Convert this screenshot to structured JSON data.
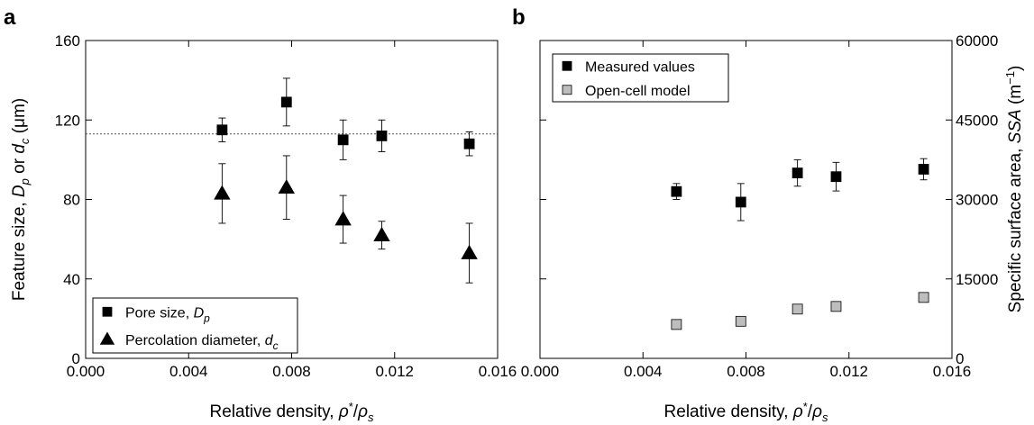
{
  "chart_data": [
    {
      "panel": "a",
      "type": "scatter",
      "xlabel": {
        "main": "Relative density, ",
        "rho": "ρ",
        "star": "*",
        "slash": "/",
        "rho2": "ρ",
        "sub": "s"
      },
      "ylabel": {
        "main": "Feature size, ",
        "D": "D",
        "sub_p": "p",
        "or": " or ",
        "d": "d",
        "sub_c": "c",
        "unit": " (μm)"
      },
      "xlim": [
        0.0,
        0.016
      ],
      "ylim": [
        0,
        160
      ],
      "xticks": [
        "0.000",
        "0.004",
        "0.008",
        "0.012",
        "0.016"
      ],
      "yticks": [
        "0",
        "40",
        "80",
        "120",
        "160"
      ],
      "reference_line": {
        "y": 113,
        "style": "dotted"
      },
      "series": [
        {
          "name": "Pore size, D_p",
          "legend": {
            "main": "Pore size, ",
            "sym": "D",
            "sub": "p"
          },
          "marker": "square",
          "color": "#000000",
          "x": [
            0.0053,
            0.0078,
            0.01,
            0.0115,
            0.0149
          ],
          "y": [
            115,
            129,
            110,
            112,
            108
          ],
          "err": [
            6,
            12,
            10,
            8,
            6
          ]
        },
        {
          "name": "Percolation diameter, d_c",
          "legend": {
            "main": "Percolation diameter, ",
            "sym": "d",
            "sub": "c"
          },
          "marker": "triangle",
          "color": "#000000",
          "x": [
            0.0053,
            0.0078,
            0.01,
            0.0115,
            0.0149
          ],
          "y": [
            83,
            86,
            70,
            62,
            53
          ],
          "err": [
            15,
            16,
            12,
            7,
            15
          ]
        }
      ],
      "legend_position": "bottom-left"
    },
    {
      "panel": "b",
      "type": "scatter",
      "xlabel": {
        "main": "Relative density, ",
        "rho": "ρ",
        "star": "*",
        "slash": "/",
        "rho2": "ρ",
        "sub": "s"
      },
      "ylabel": {
        "main": "Specific surface area, ",
        "sym": "SSA",
        "unit": " (m",
        "exp": "−1",
        "close": ")"
      },
      "xlim": [
        0.0,
        0.016
      ],
      "ylim": [
        0,
        60000
      ],
      "yaxis_side": "right",
      "xticks": [
        "0.000",
        "0.004",
        "0.008",
        "0.012",
        "0.016"
      ],
      "yticks": [
        "0",
        "15000",
        "30000",
        "45000",
        "60000"
      ],
      "series": [
        {
          "name": "Measured values",
          "legend": {
            "main": "Measured values"
          },
          "marker": "square",
          "color": "#000000",
          "x": [
            0.0053,
            0.0078,
            0.01,
            0.0115,
            0.0149
          ],
          "y": [
            31500,
            29500,
            35000,
            34300,
            35700
          ],
          "err": [
            1500,
            3500,
            2500,
            2700,
            2000
          ]
        },
        {
          "name": "Open-cell model",
          "legend": {
            "main": "Open-cell model"
          },
          "marker": "square",
          "color": "#bdbdbd",
          "x": [
            0.0053,
            0.0078,
            0.01,
            0.0115,
            0.0149
          ],
          "y": [
            6400,
            7000,
            9300,
            9800,
            11500
          ],
          "err": [
            0,
            0,
            0,
            0,
            0
          ]
        }
      ],
      "legend_position": "top-left"
    }
  ]
}
